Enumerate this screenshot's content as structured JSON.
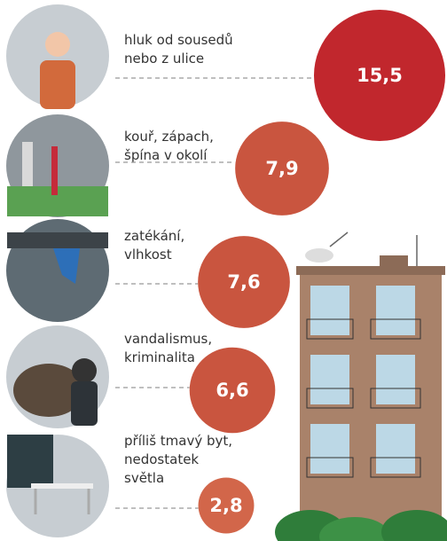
{
  "chart_data": {
    "type": "bubble",
    "categories": [
      [
        "hluk od sousedů",
        "nebo z ulice"
      ],
      [
        "kouř, zápach,",
        "špína v okolí"
      ],
      [
        "zatékání,",
        "vlhkost"
      ],
      [
        "vandalismus,",
        "kriminalita"
      ],
      [
        "příliš tmavý byt,",
        "nedostatek",
        "světla"
      ]
    ],
    "values": [
      15.5,
      7.9,
      7.6,
      6.6,
      2.8
    ],
    "value_labels": [
      "15,5",
      "7,9",
      "7,6",
      "6,6",
      "2,8"
    ],
    "colors": [
      "#c1272d",
      "#c9553f",
      "#c9553f",
      "#c9553f",
      "#d2664a"
    ]
  }
}
